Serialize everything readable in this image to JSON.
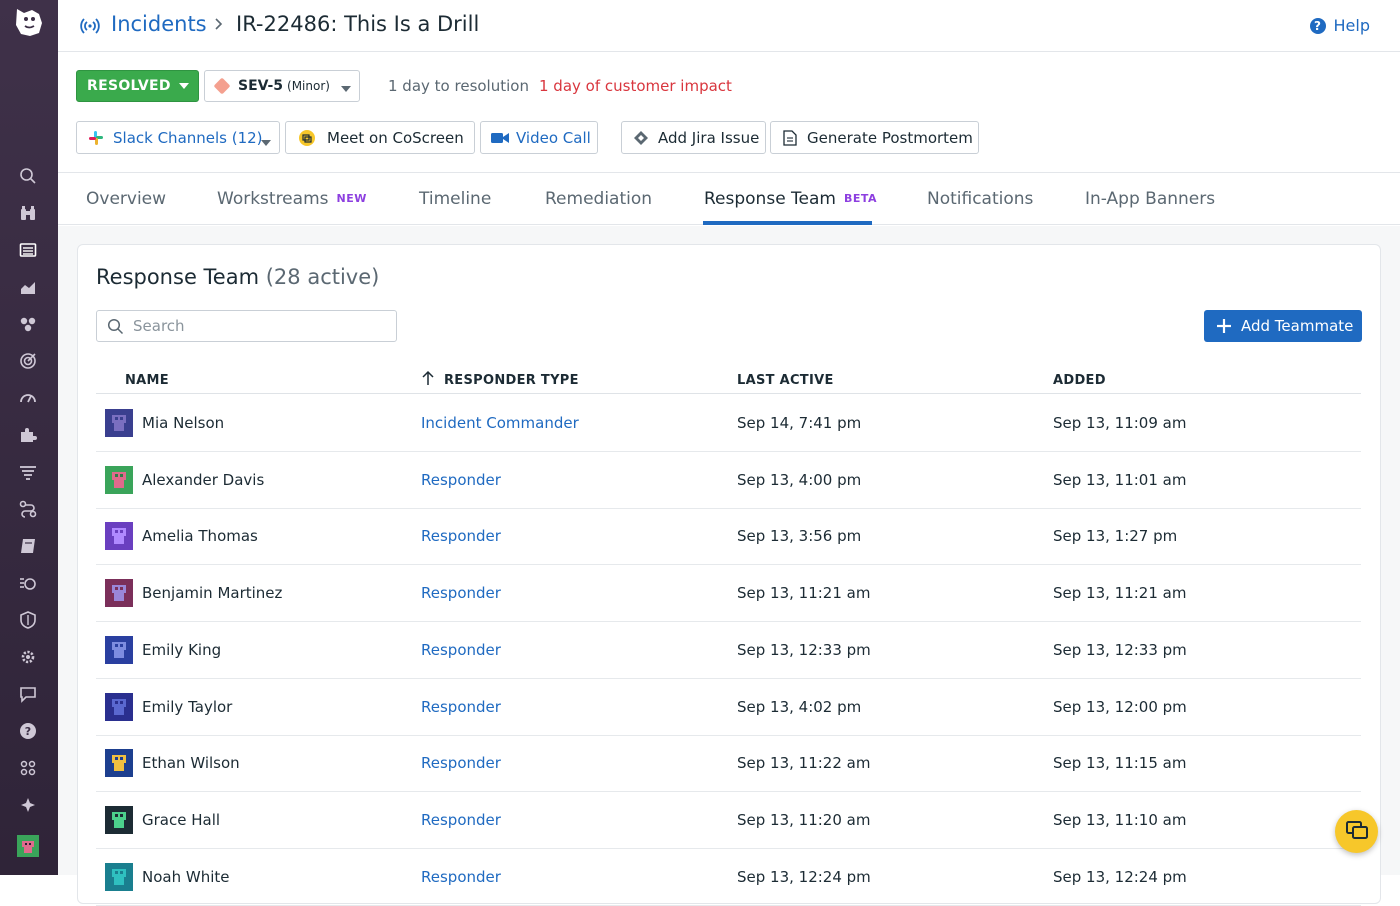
{
  "header": {
    "breadcrumb_link": "Incidents",
    "title": "IR-22486:  This Is a Drill",
    "help": "Help"
  },
  "status": {
    "state": "RESOLVED",
    "severity": "SEV-5",
    "severity_detail": "(Minor)",
    "resolution_text": "1 day to resolution",
    "impact_text": "1 day of customer impact"
  },
  "actions": {
    "slack": "Slack Channels (12)",
    "coscreen": "Meet on CoScreen",
    "video": "Video Call",
    "jira": "Add Jira Issue",
    "postmortem": "Generate Postmortem"
  },
  "tabs": [
    {
      "label": "Overview",
      "badge": ""
    },
    {
      "label": "Workstreams",
      "badge": "NEW"
    },
    {
      "label": "Timeline",
      "badge": ""
    },
    {
      "label": "Remediation",
      "badge": ""
    },
    {
      "label": "Response Team",
      "badge": "BETA"
    },
    {
      "label": "Notifications",
      "badge": ""
    },
    {
      "label": "In-App Banners",
      "badge": ""
    }
  ],
  "active_tab": "Response Team",
  "team": {
    "title": "Response Team",
    "count": "(28 active)",
    "search_placeholder": "Search",
    "add_button": "Add Teammate",
    "columns": [
      "NAME",
      "RESPONDER TYPE",
      "LAST ACTIVE",
      "ADDED"
    ],
    "rows": [
      {
        "name": "Mia Nelson",
        "type": "Incident Commander",
        "last_active": "Sep 14, 7:41 pm",
        "added": "Sep 13, 11:09 am"
      },
      {
        "name": "Alexander Davis",
        "type": "Responder",
        "last_active": "Sep 13, 4:00 pm",
        "added": "Sep 13, 11:01 am"
      },
      {
        "name": "Amelia Thomas",
        "type": "Responder",
        "last_active": "Sep 13, 3:56 pm",
        "added": "Sep 13, 1:27 pm"
      },
      {
        "name": "Benjamin Martinez",
        "type": "Responder",
        "last_active": "Sep 13, 11:21 am",
        "added": "Sep 13, 11:21 am"
      },
      {
        "name": "Emily King",
        "type": "Responder",
        "last_active": "Sep 13, 12:33 pm",
        "added": "Sep 13, 12:33 pm"
      },
      {
        "name": "Emily Taylor",
        "type": "Responder",
        "last_active": "Sep 13, 4:02 pm",
        "added": "Sep 13, 12:00 pm"
      },
      {
        "name": "Ethan Wilson",
        "type": "Responder",
        "last_active": "Sep 13, 11:22 am",
        "added": "Sep 13, 11:15 am"
      },
      {
        "name": "Grace Hall",
        "type": "Responder",
        "last_active": "Sep 13, 11:20 am",
        "added": "Sep 13, 11:10 am"
      },
      {
        "name": "Noah White",
        "type": "Responder",
        "last_active": "Sep 13, 12:24 pm",
        "added": "Sep 13, 12:24 pm"
      }
    ]
  },
  "colors": {
    "accent": "#1f6ac1",
    "resolved": "#3aaa4c",
    "impact": "#d9363e",
    "badge": "#8d3fe0",
    "sidebar": "#3b2e45"
  },
  "icons": {
    "sidebar": [
      "search-icon",
      "binoculars-icon",
      "list-icon",
      "area-chart-icon",
      "hexagons-icon",
      "target-icon",
      "gauge-icon",
      "puzzle-icon",
      "filter-icon",
      "route-icon",
      "book-icon",
      "scan-icon",
      "shield-icon",
      "gear-icon",
      "chat-icon",
      "question-icon",
      "team-icon",
      "sparkle-icon"
    ]
  }
}
